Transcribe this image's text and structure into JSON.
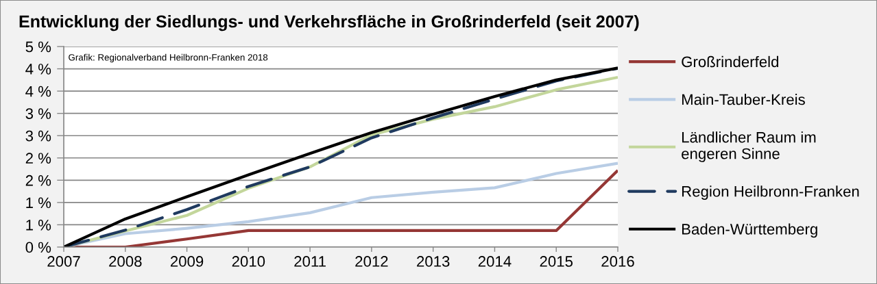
{
  "chart_data": {
    "type": "line",
    "title": "Entwicklung der Siedlungs- und Verkehrsfläche in Großrinderfeld (seit 2007)",
    "annotations": [
      "Grafik: Regionalverband Heilbronn-Franken 2018"
    ],
    "x": [
      2007,
      2008,
      2009,
      2010,
      2011,
      2012,
      2013,
      2014,
      2015,
      2016
    ],
    "xlim": [
      2007,
      2016
    ],
    "xticks": [
      2007,
      2008,
      2009,
      2010,
      2011,
      2012,
      2013,
      2014,
      2015,
      2016
    ],
    "ylim": [
      0,
      4.5
    ],
    "yticks": [
      {
        "value": 0,
        "label": "0 %"
      },
      {
        "value": 0.5,
        "label": "1 %"
      },
      {
        "value": 1.0,
        "label": "1 %"
      },
      {
        "value": 1.5,
        "label": "2 %"
      },
      {
        "value": 2.0,
        "label": "2 %"
      },
      {
        "value": 2.5,
        "label": "3 %"
      },
      {
        "value": 3.0,
        "label": "3 %"
      },
      {
        "value": 3.5,
        "label": "4 %"
      },
      {
        "value": 4.0,
        "label": "4 %"
      },
      {
        "value": 4.5,
        "label": "5 %"
      }
    ],
    "grid": "y",
    "legend": "right",
    "line_style": "solid",
    "series": [
      {
        "name": "Großrinderfeld",
        "color": "#953735",
        "values": [
          0,
          0,
          0.18,
          0.37,
          0.37,
          0.37,
          0.37,
          0.37,
          0.37,
          1.72
        ]
      },
      {
        "name": "Main-Tauber-Kreis",
        "color": "#b9cde5",
        "values": [
          0,
          0.3,
          0.42,
          0.57,
          0.77,
          1.11,
          1.23,
          1.33,
          1.65,
          1.88
        ]
      },
      {
        "name": "Ländlicher Raum im engeren Sinne",
        "color": "#c3d69b",
        "values": [
          0,
          0.36,
          0.71,
          1.32,
          1.8,
          2.52,
          2.87,
          3.15,
          3.53,
          3.81
        ]
      },
      {
        "name": "Region Heilbronn-Franken",
        "color": "#1f3a5f",
        "line_style": "dashed",
        "values": [
          0,
          0.38,
          0.84,
          1.36,
          1.8,
          2.45,
          2.9,
          3.32,
          3.73,
          4.01
        ]
      },
      {
        "name": "Baden-Württemberg",
        "color": "#000000",
        "values": [
          0,
          0.63,
          1.13,
          1.62,
          2.1,
          2.57,
          2.98,
          3.38,
          3.75,
          4.02
        ]
      }
    ]
  }
}
